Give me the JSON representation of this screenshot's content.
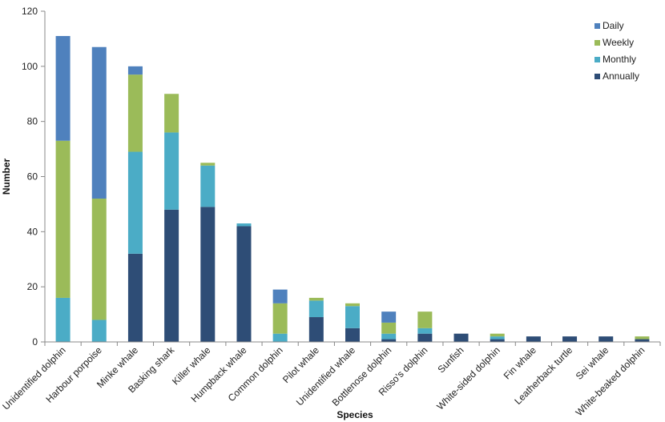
{
  "chart_data": {
    "type": "bar",
    "stacked": true,
    "xlabel": "Species",
    "ylabel": "Number",
    "ylim": [
      0,
      120
    ],
    "yticks": [
      0,
      20,
      40,
      60,
      80,
      100,
      120
    ],
    "grid": false,
    "legend_position": "top-right",
    "categories": [
      "Unidentified dolphin",
      "Harbour porpoise",
      "Minke whale",
      "Basking shark",
      "Killer whale",
      "Humpback whale",
      "Common dolphin",
      "Pilot whale",
      "Unidentified whale",
      "Bottlenose dolphin",
      "Risso's dolphin",
      "Sunfish",
      "White-sided dolphin",
      "Fin whale",
      "Leatherback turtle",
      "Sei whale",
      "White-beaked dolphin"
    ],
    "series": [
      {
        "name": "Annually",
        "color": "#2e4d76",
        "values": [
          0,
          0,
          32,
          48,
          49,
          42,
          0,
          9,
          5,
          1,
          3,
          3,
          1,
          2,
          2,
          2,
          1
        ]
      },
      {
        "name": "Monthly",
        "color": "#4bacc6",
        "values": [
          16,
          8,
          37,
          28,
          15,
          1,
          3,
          6,
          8,
          2,
          2,
          0,
          1,
          0,
          0,
          0,
          0
        ]
      },
      {
        "name": "Weekly",
        "color": "#9bbb59",
        "values": [
          57,
          44,
          28,
          14,
          1,
          0,
          11,
          1,
          1,
          4,
          6,
          0,
          1,
          0,
          0,
          0,
          1
        ]
      },
      {
        "name": "Daily",
        "color": "#4f81bd",
        "values": [
          38,
          55,
          3,
          0,
          0,
          0,
          5,
          0,
          0,
          4,
          0,
          0,
          0,
          0,
          0,
          0,
          0
        ]
      }
    ],
    "legend_order": [
      "Daily",
      "Weekly",
      "Monthly",
      "Annually"
    ]
  }
}
